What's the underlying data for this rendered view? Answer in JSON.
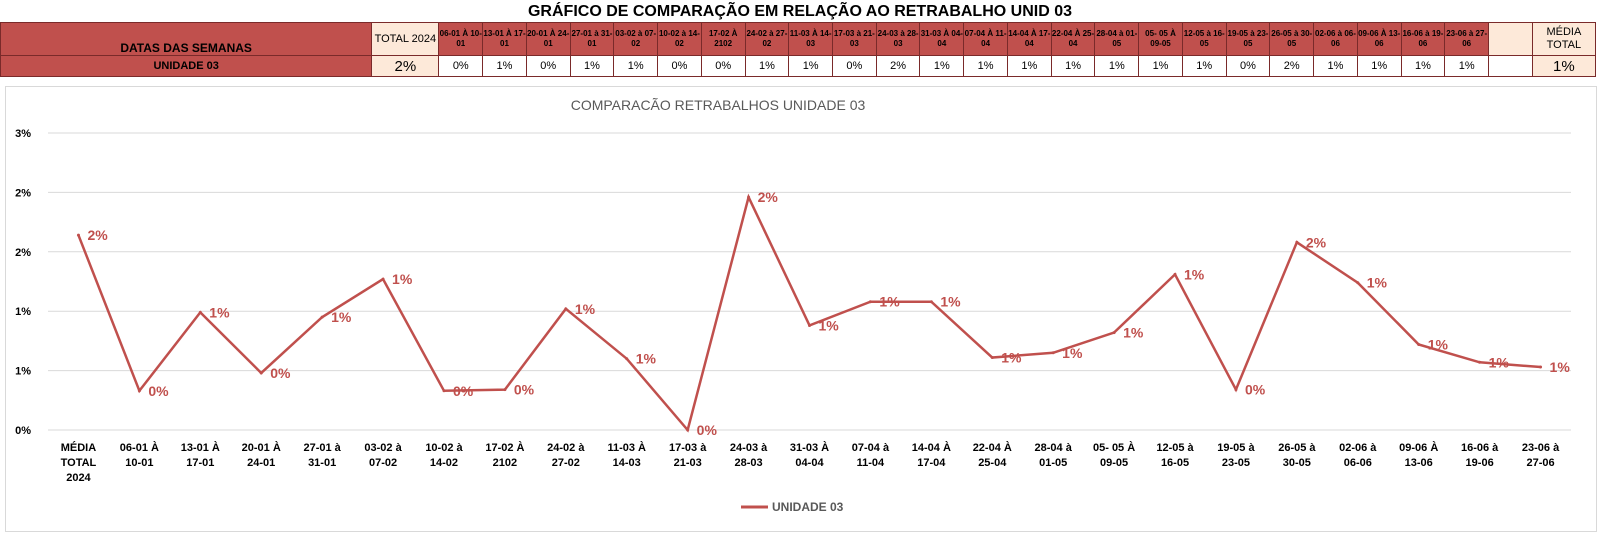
{
  "sheet_title": "GRÁFICO DE COMPARAÇÃO EM RELAÇÃO AO RETRABALHO UNID 03",
  "table": {
    "row1_label": "DATAS DAS SEMANAS",
    "total_header": "TOTAL 2024",
    "week_headers": [
      "06-01 À 10-01",
      "13-01 À 17-01",
      "20-01 À 24-01",
      "27-01 à 31-01",
      "03-02 à 07-02",
      "10-02 à 14-02",
      "17-02 À 2102",
      "24-02 à 27-02",
      "11-03 À 14-03",
      "17-03 à 21-03",
      "24-03 à 28-03",
      "31-03 À 04-04",
      "07-04 À 11-04",
      "14-04 À 17-04",
      "22-04 À 25-04",
      "28-04 à 01-05",
      "05- 05 À 09-05",
      "12-05 à 16-05",
      "19-05 à 23-05",
      "26-05 à 30-05",
      "02-06 à 06-06",
      "09-06 À 13-06",
      "16-06 à 19-06",
      "23-06 à 27-06"
    ],
    "media_header": "MÉDIA TOTAL",
    "row2_label": "UNIDADE 03",
    "total_value": "2%",
    "week_values": [
      "0%",
      "1%",
      "0%",
      "1%",
      "1%",
      "0%",
      "0%",
      "1%",
      "1%",
      "0%",
      "2%",
      "1%",
      "1%",
      "1%",
      "1%",
      "1%",
      "1%",
      "1%",
      "0%",
      "2%",
      "1%",
      "1%",
      "1%",
      "1%"
    ],
    "media_value": "1%"
  },
  "colors": {
    "header_red": "#c0504d",
    "total_fill": "#fde9d9",
    "series_line": "#c0504d",
    "label_text": "#c0504d",
    "grid": "#d9d9d9"
  },
  "chart_data": {
    "type": "line",
    "title": "COMPARACÃO RETRABALHOS UNIDADE 03",
    "categories": [
      "MÉDIA TOTAL 2024",
      "06-01 À 10-01",
      "13-01 À 17-01",
      "20-01 À 24-01",
      "27-01 à 31-01",
      "03-02 à 07-02",
      "10-02 à 14-02",
      "17-02 À 2102",
      "24-02 à 27-02",
      "11-03 À 14-03",
      "17-03 à 21-03",
      "24-03 à 28-03",
      "31-03 À 04-04",
      "07-04 à 11-04",
      "14-04 À 17-04",
      "22-04 À 25-04",
      "28-04 à 01-05",
      "05- 05 À 09-05",
      "12-05 à 16-05",
      "19-05 à 23-05",
      "26-05 à 30-05",
      "02-06 à 06-06",
      "09-06 À 13-06",
      "16-06 à 19-06",
      "23-06 à 27-06"
    ],
    "series": [
      {
        "name": "UNIDADE 03",
        "values": [
          1.64,
          0.33,
          0.99,
          0.48,
          0.95,
          1.27,
          0.33,
          0.34,
          1.02,
          0.6,
          0.0,
          1.96,
          0.88,
          1.08,
          1.08,
          0.61,
          0.65,
          0.82,
          1.31,
          0.34,
          1.58,
          1.24,
          0.72,
          0.57,
          0.53
        ],
        "labels": [
          "2%",
          "0%",
          "1%",
          "0%",
          "1%",
          "1%",
          "0%",
          "0%",
          "1%",
          "1%",
          "0%",
          "2%",
          "1%",
          "1%",
          "1%",
          "1%",
          "1%",
          "1%",
          "1%",
          "0%",
          "2%",
          "1%",
          "1%",
          "1%",
          "1%"
        ]
      }
    ],
    "y_tick_labels": [
      "0%",
      "1%",
      "1%",
      "2%",
      "2%",
      "3%"
    ],
    "ylim": [
      0,
      2.5
    ],
    "grid": true,
    "legend_position": "bottom"
  }
}
